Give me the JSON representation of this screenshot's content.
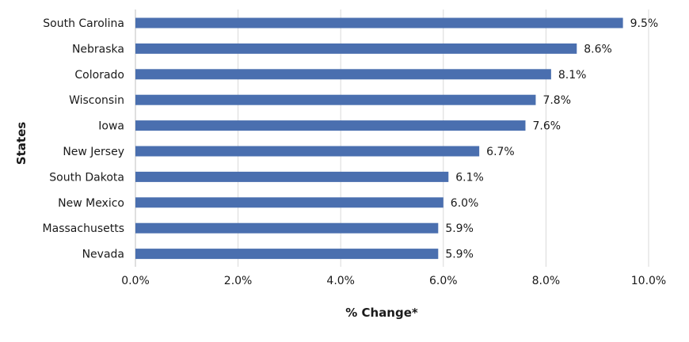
{
  "chart_data": {
    "type": "bar",
    "orientation": "horizontal",
    "title": "",
    "xlabel": "% Change*",
    "ylabel": "States",
    "xlim": [
      0,
      10
    ],
    "x_ticks": [
      "0.0%",
      "2.0%",
      "4.0%",
      "6.0%",
      "8.0%",
      "10.0%"
    ],
    "grid": "vertical",
    "legend": "none",
    "bar_color": "#4A6FAF",
    "categories": [
      "South Carolina",
      "Nebraska",
      "Colorado",
      "Wisconsin",
      "Iowa",
      "New Jersey",
      "South Dakota",
      "New Mexico",
      "Massachusetts",
      "Nevada"
    ],
    "values": [
      9.5,
      8.6,
      8.1,
      7.8,
      7.6,
      6.7,
      6.1,
      6.0,
      5.9,
      5.9
    ],
    "data_labels": [
      "9.5%",
      "8.6%",
      "8.1%",
      "7.8%",
      "7.6%",
      "6.7%",
      "6.1%",
      "6.0%",
      "5.9%",
      "5.9%"
    ]
  }
}
